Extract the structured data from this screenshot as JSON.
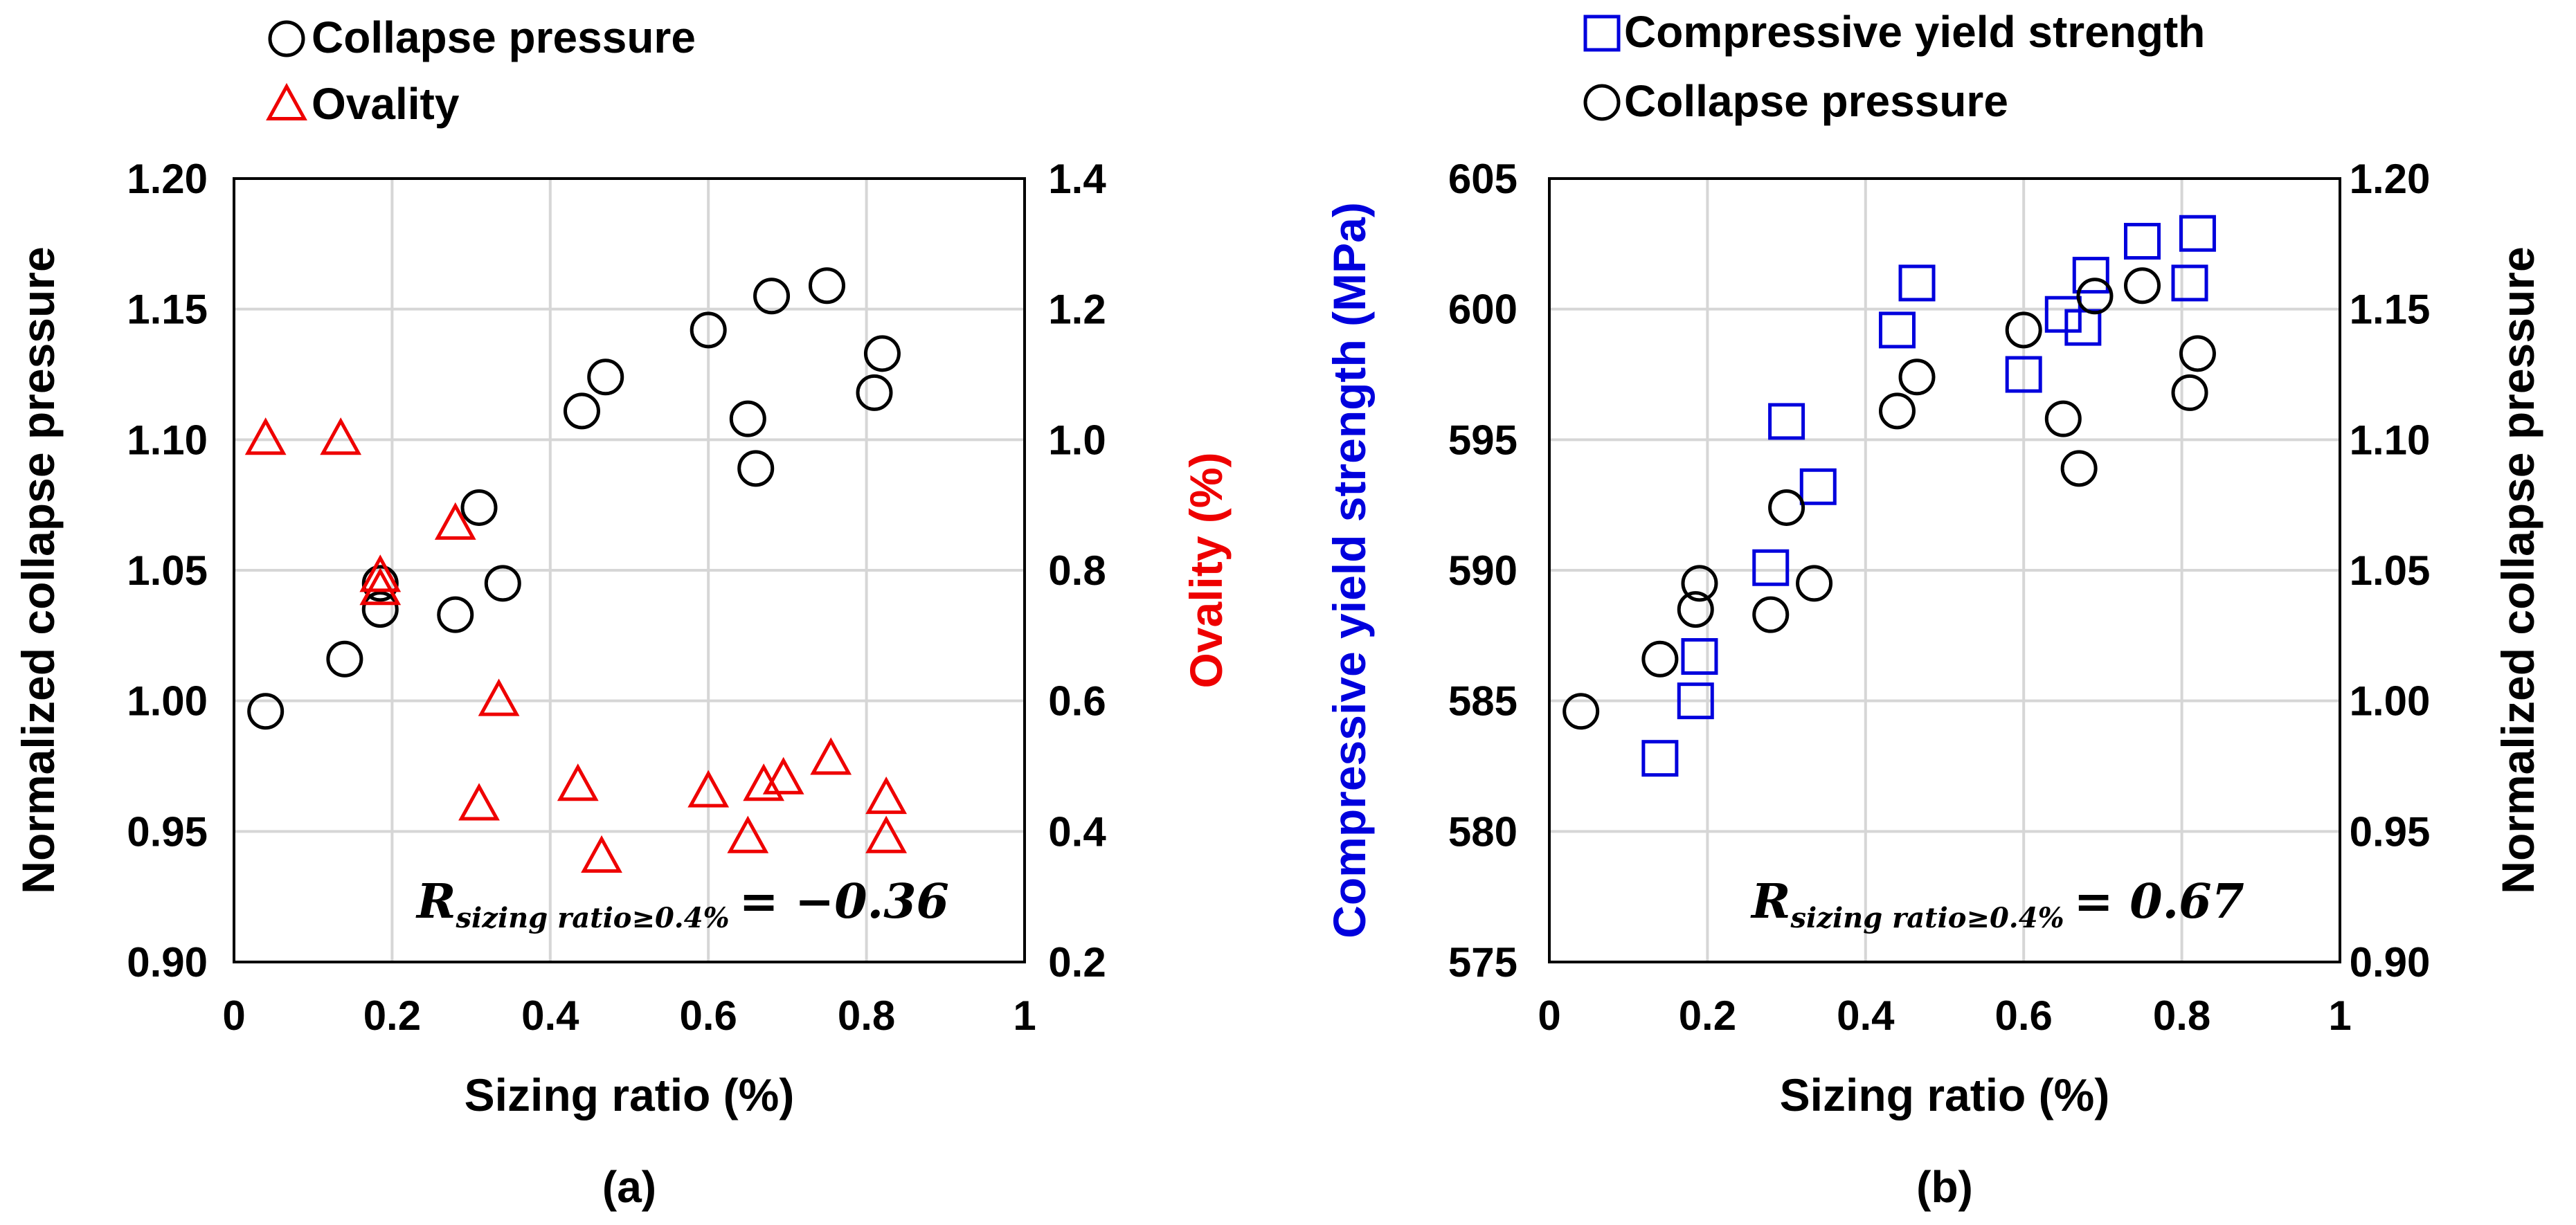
{
  "colors": {
    "black": "#000000",
    "red": "#ee0000",
    "blue": "#0000dd",
    "grid": "#d6d6d6"
  },
  "chart_data": [
    {
      "type": "scatter",
      "panel_label": "(a)",
      "xlabel": "Sizing ratio (%)",
      "xlim": [
        0,
        1
      ],
      "xticks": [
        0,
        0.2,
        0.4,
        0.6,
        0.8,
        1
      ],
      "xtick_labels": [
        "0",
        "0.2",
        "0.4",
        "0.6",
        "0.8",
        "1"
      ],
      "y_left": {
        "label": "Normalized collapse pressure",
        "lim": [
          0.9,
          1.2
        ],
        "ticks": [
          0.9,
          0.95,
          1.0,
          1.05,
          1.1,
          1.15,
          1.2
        ],
        "tick_labels": [
          "0.90",
          "0.95",
          "1.00",
          "1.05",
          "1.10",
          "1.15",
          "1.20"
        ],
        "color": "#000000"
      },
      "y_right": {
        "label": "Ovality (%)",
        "lim": [
          0.2,
          1.4
        ],
        "ticks": [
          0.2,
          0.4,
          0.6,
          0.8,
          1.0,
          1.2,
          1.4
        ],
        "tick_labels": [
          "0.2",
          "0.4",
          "0.6",
          "0.8",
          "1.0",
          "1.2",
          "1.4"
        ],
        "color": "#ee0000"
      },
      "legend": [
        "Collapse pressure",
        "Ovality"
      ],
      "annotation": {
        "base": "R",
        "subscript": "sizing ratio≥0.4%",
        "value": "= −0.36"
      },
      "series": [
        {
          "name": "Collapse pressure",
          "axis": "left",
          "marker": "circle",
          "x": [
            0.04,
            0.14,
            0.185,
            0.185,
            0.28,
            0.31,
            0.34,
            0.44,
            0.47,
            0.6,
            0.65,
            0.66,
            0.68,
            0.75,
            0.81,
            0.82
          ],
          "y": [
            0.996,
            1.016,
            1.045,
            1.035,
            1.033,
            1.074,
            1.045,
            1.111,
            1.124,
            1.142,
            1.108,
            1.089,
            1.155,
            1.159,
            1.118,
            1.133
          ]
        },
        {
          "name": "Ovality",
          "axis": "right",
          "marker": "triangle",
          "x": [
            0.04,
            0.135,
            0.185,
            0.185,
            0.28,
            0.31,
            0.335,
            0.435,
            0.465,
            0.6,
            0.65,
            0.67,
            0.695,
            0.755,
            0.825,
            0.825
          ],
          "y": [
            1.0,
            1.0,
            0.79,
            0.77,
            0.87,
            0.44,
            0.6,
            0.47,
            0.36,
            0.46,
            0.39,
            0.47,
            0.48,
            0.51,
            0.45,
            0.39
          ]
        }
      ]
    },
    {
      "type": "scatter",
      "panel_label": "(b)",
      "xlabel": "Sizing ratio (%)",
      "xlim": [
        0,
        1
      ],
      "xticks": [
        0,
        0.2,
        0.4,
        0.6,
        0.8,
        1
      ],
      "xtick_labels": [
        "0",
        "0.2",
        "0.4",
        "0.6",
        "0.8",
        "1"
      ],
      "y_left": {
        "label": "Compressive yield strength (MPa)",
        "lim": [
          575,
          605
        ],
        "ticks": [
          575,
          580,
          585,
          590,
          595,
          600,
          605
        ],
        "tick_labels": [
          "575",
          "580",
          "585",
          "590",
          "595",
          "600",
          "605"
        ],
        "color": "#0000dd"
      },
      "y_right": {
        "label": "Normalized collapse pressure",
        "lim": [
          0.9,
          1.2
        ],
        "ticks": [
          0.9,
          0.95,
          1.0,
          1.05,
          1.1,
          1.15,
          1.2
        ],
        "tick_labels": [
          "0.90",
          "0.95",
          "1.00",
          "1.05",
          "1.10",
          "1.15",
          "1.20"
        ],
        "color": "#000000"
      },
      "legend": [
        "Compressive yield strength",
        "Collapse pressure"
      ],
      "annotation": {
        "base": "R",
        "subscript": "sizing ratio≥0.4%",
        "value": "= 0.67"
      },
      "series": [
        {
          "name": "Compressive yield strength",
          "axis": "left",
          "marker": "square",
          "x": [
            0.14,
            0.185,
            0.19,
            0.28,
            0.3,
            0.34,
            0.44,
            0.465,
            0.6,
            0.65,
            0.675,
            0.685,
            0.75,
            0.81,
            0.82
          ],
          "y": [
            582.8,
            585.0,
            586.7,
            590.1,
            595.7,
            593.2,
            599.2,
            601.0,
            597.5,
            599.8,
            599.3,
            601.3,
            602.6,
            601.0,
            602.9
          ]
        },
        {
          "name": "Collapse pressure",
          "axis": "right",
          "marker": "circle",
          "x": [
            0.04,
            0.14,
            0.185,
            0.19,
            0.28,
            0.3,
            0.335,
            0.44,
            0.465,
            0.6,
            0.65,
            0.67,
            0.69,
            0.75,
            0.81,
            0.82
          ],
          "y": [
            0.996,
            1.016,
            1.035,
            1.045,
            1.033,
            1.074,
            1.045,
            1.111,
            1.124,
            1.142,
            1.108,
            1.089,
            1.155,
            1.159,
            1.118,
            1.133
          ]
        }
      ]
    }
  ]
}
